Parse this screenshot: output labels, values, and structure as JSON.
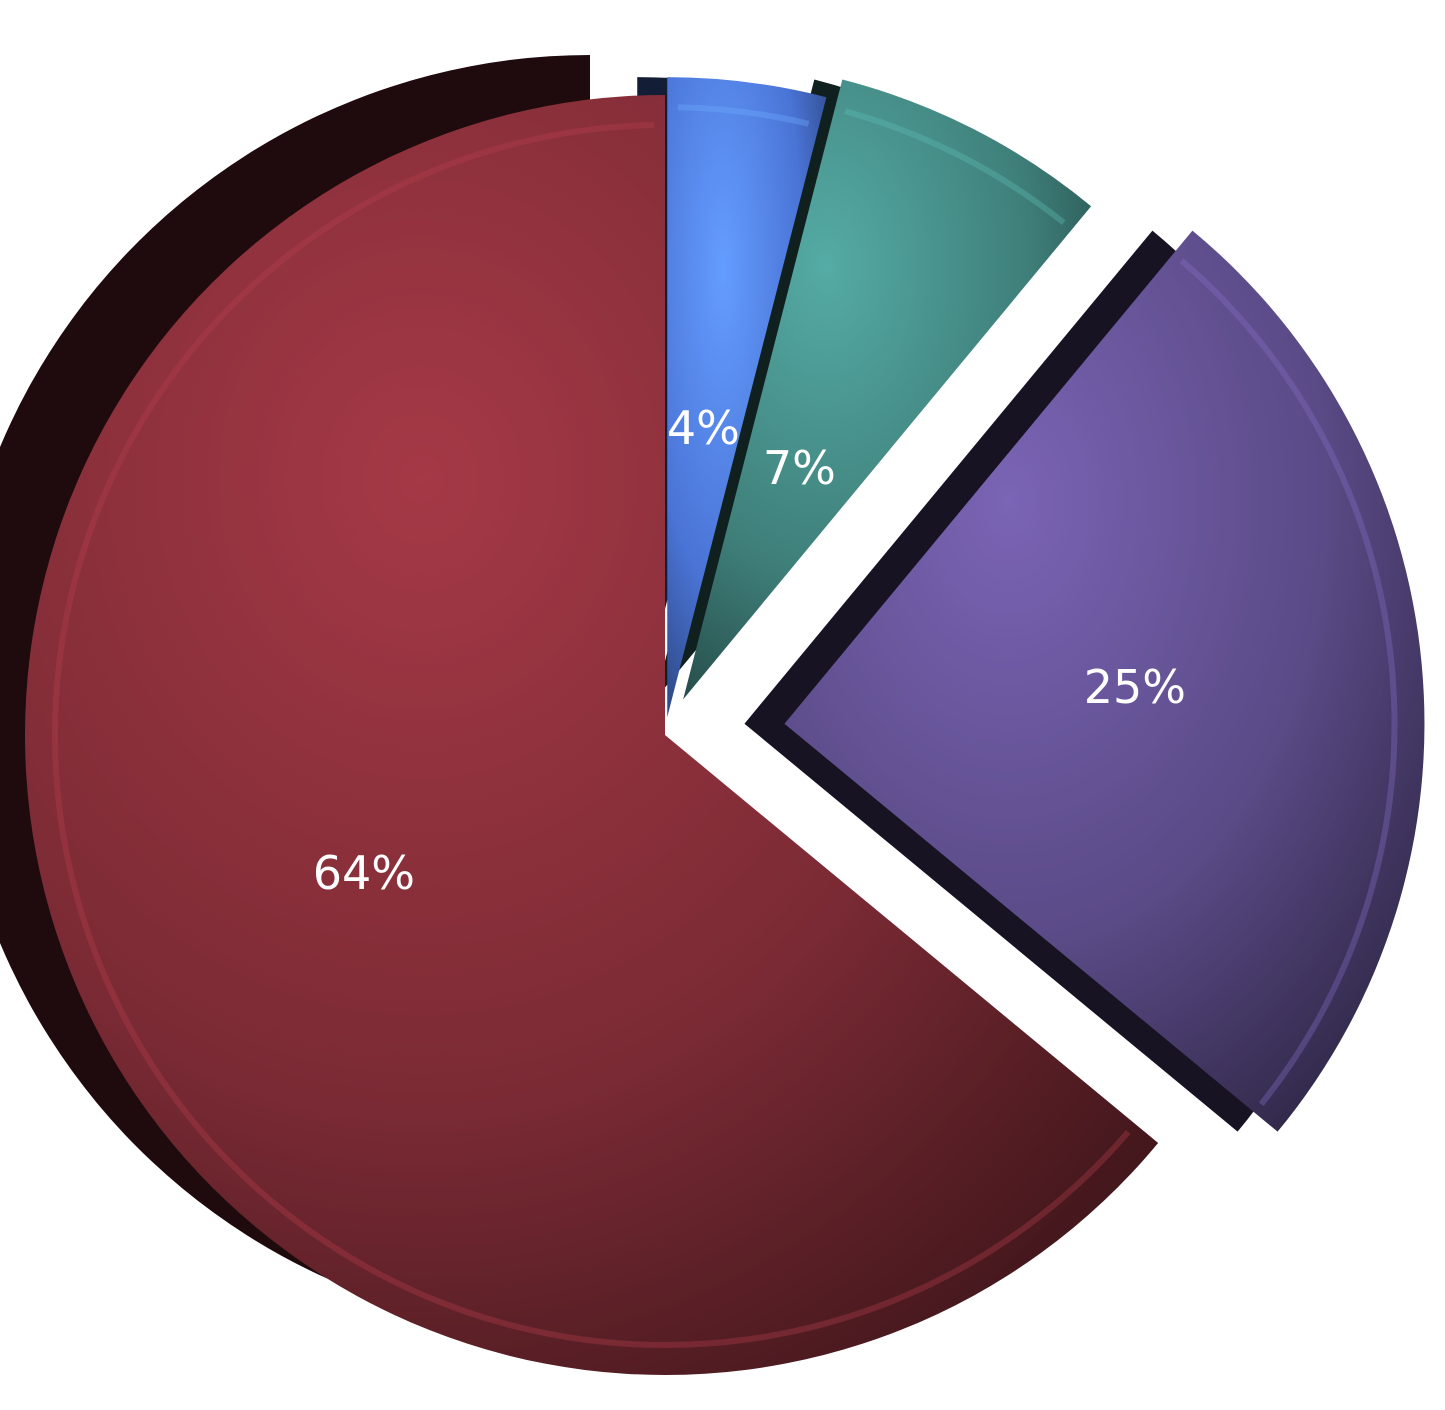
{
  "chart_data": {
    "type": "pie",
    "style": "3d-exploded",
    "slices": [
      {
        "label": "4%",
        "value": 4,
        "color": "#4a74d6",
        "exploded": true
      },
      {
        "label": "7%",
        "value": 7,
        "color": "#3f7f7a",
        "exploded": true
      },
      {
        "label": "25%",
        "value": 25,
        "color": "#5a4a86",
        "exploded": true
      },
      {
        "label": "64%",
        "value": 64,
        "color": "#7a2a34",
        "exploded": false
      }
    ],
    "legend": "none"
  }
}
